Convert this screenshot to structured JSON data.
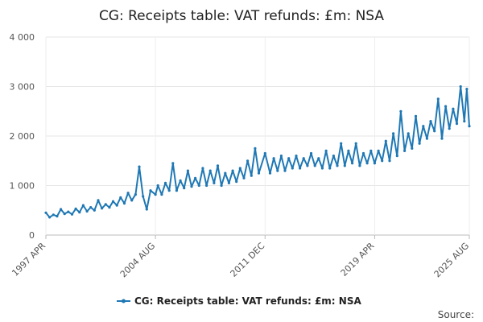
{
  "chart_data": {
    "type": "line",
    "title": "CG: Receipts table: VAT refunds: £m: NSA",
    "xlabel": "",
    "ylabel": "",
    "ylim": [
      0,
      4000
    ],
    "y_ticks": [
      {
        "value": 0,
        "label": "0"
      },
      {
        "value": 1000,
        "label": "1 000"
      },
      {
        "value": 2000,
        "label": "2 000"
      },
      {
        "value": 3000,
        "label": "3 000"
      },
      {
        "value": 4000,
        "label": "4 000"
      }
    ],
    "x_range": [
      "1997-04",
      "2025-08"
    ],
    "x_ticks": [
      {
        "x": "1997-04",
        "label": "1997 APR"
      },
      {
        "x": "2004-08",
        "label": "2004 AUG"
      },
      {
        "x": "2011-12",
        "label": "2011 DEC"
      },
      {
        "x": "2019-04",
        "label": "2019 APR"
      },
      {
        "x": "2025-08",
        "label": "2025 AUG"
      }
    ],
    "grid": true,
    "legend_position": "bottom",
    "color": "#1f78b4",
    "series": [
      {
        "name": "CG: Receipts table: VAT refunds: £m: NSA",
        "points": [
          [
            "1997-04",
            450
          ],
          [
            "1997-07",
            360
          ],
          [
            "1997-10",
            410
          ],
          [
            "1998-01",
            380
          ],
          [
            "1998-04",
            520
          ],
          [
            "1998-07",
            430
          ],
          [
            "1998-10",
            470
          ],
          [
            "1999-01",
            420
          ],
          [
            "1999-04",
            530
          ],
          [
            "1999-07",
            460
          ],
          [
            "1999-10",
            600
          ],
          [
            "2000-01",
            480
          ],
          [
            "2000-04",
            560
          ],
          [
            "2000-07",
            500
          ],
          [
            "2000-10",
            700
          ],
          [
            "2001-01",
            540
          ],
          [
            "2001-04",
            620
          ],
          [
            "2001-07",
            560
          ],
          [
            "2001-10",
            680
          ],
          [
            "2002-01",
            600
          ],
          [
            "2002-04",
            760
          ],
          [
            "2002-07",
            640
          ],
          [
            "2002-10",
            850
          ],
          [
            "2003-01",
            700
          ],
          [
            "2003-04",
            820
          ],
          [
            "2003-07",
            1380
          ],
          [
            "2003-10",
            780
          ],
          [
            "2004-01",
            520
          ],
          [
            "2004-04",
            900
          ],
          [
            "2004-08",
            820
          ],
          [
            "2004-10",
            1000
          ],
          [
            "2005-01",
            820
          ],
          [
            "2005-04",
            1050
          ],
          [
            "2005-07",
            900
          ],
          [
            "2005-10",
            1450
          ],
          [
            "2006-01",
            900
          ],
          [
            "2006-04",
            1100
          ],
          [
            "2006-07",
            950
          ],
          [
            "2006-10",
            1300
          ],
          [
            "2007-01",
            980
          ],
          [
            "2007-04",
            1150
          ],
          [
            "2007-07",
            1000
          ],
          [
            "2007-10",
            1350
          ],
          [
            "2008-01",
            1000
          ],
          [
            "2008-04",
            1300
          ],
          [
            "2008-07",
            1050
          ],
          [
            "2008-10",
            1400
          ],
          [
            "2009-01",
            1000
          ],
          [
            "2009-04",
            1250
          ],
          [
            "2009-07",
            1050
          ],
          [
            "2009-10",
            1300
          ],
          [
            "2010-01",
            1080
          ],
          [
            "2010-04",
            1350
          ],
          [
            "2010-07",
            1150
          ],
          [
            "2010-10",
            1500
          ],
          [
            "2011-01",
            1200
          ],
          [
            "2011-04",
            1750
          ],
          [
            "2011-07",
            1250
          ],
          [
            "2011-12",
            1650
          ],
          [
            "2012-04",
            1250
          ],
          [
            "2012-07",
            1550
          ],
          [
            "2012-10",
            1300
          ],
          [
            "2013-01",
            1600
          ],
          [
            "2013-04",
            1300
          ],
          [
            "2013-07",
            1550
          ],
          [
            "2013-10",
            1350
          ],
          [
            "2014-01",
            1600
          ],
          [
            "2014-04",
            1350
          ],
          [
            "2014-07",
            1550
          ],
          [
            "2014-10",
            1400
          ],
          [
            "2015-01",
            1650
          ],
          [
            "2015-04",
            1400
          ],
          [
            "2015-07",
            1550
          ],
          [
            "2015-10",
            1350
          ],
          [
            "2016-01",
            1700
          ],
          [
            "2016-04",
            1350
          ],
          [
            "2016-07",
            1600
          ],
          [
            "2016-10",
            1400
          ],
          [
            "2017-01",
            1850
          ],
          [
            "2017-04",
            1400
          ],
          [
            "2017-07",
            1700
          ],
          [
            "2017-10",
            1450
          ],
          [
            "2018-01",
            1850
          ],
          [
            "2018-04",
            1400
          ],
          [
            "2018-07",
            1650
          ],
          [
            "2018-10",
            1450
          ],
          [
            "2019-01",
            1700
          ],
          [
            "2019-04",
            1450
          ],
          [
            "2019-07",
            1700
          ],
          [
            "2019-10",
            1500
          ],
          [
            "2020-01",
            1900
          ],
          [
            "2020-04",
            1500
          ],
          [
            "2020-07",
            2050
          ],
          [
            "2020-10",
            1600
          ],
          [
            "2021-01",
            2500
          ],
          [
            "2021-04",
            1700
          ],
          [
            "2021-07",
            2050
          ],
          [
            "2021-10",
            1750
          ],
          [
            "2022-01",
            2400
          ],
          [
            "2022-04",
            1850
          ],
          [
            "2022-07",
            2200
          ],
          [
            "2022-10",
            1950
          ],
          [
            "2023-01",
            2300
          ],
          [
            "2023-04",
            2100
          ],
          [
            "2023-07",
            2750
          ],
          [
            "2023-10",
            1950
          ],
          [
            "2024-01",
            2600
          ],
          [
            "2024-04",
            2150
          ],
          [
            "2024-07",
            2550
          ],
          [
            "2024-10",
            2250
          ],
          [
            "2025-01",
            3000
          ],
          [
            "2025-04",
            2300
          ],
          [
            "2025-06",
            2950
          ],
          [
            "2025-08",
            2200
          ]
        ]
      }
    ]
  },
  "legend": {
    "label": "CG: Receipts table: VAT refunds: £m: NSA"
  },
  "source": {
    "label": "Source:"
  }
}
